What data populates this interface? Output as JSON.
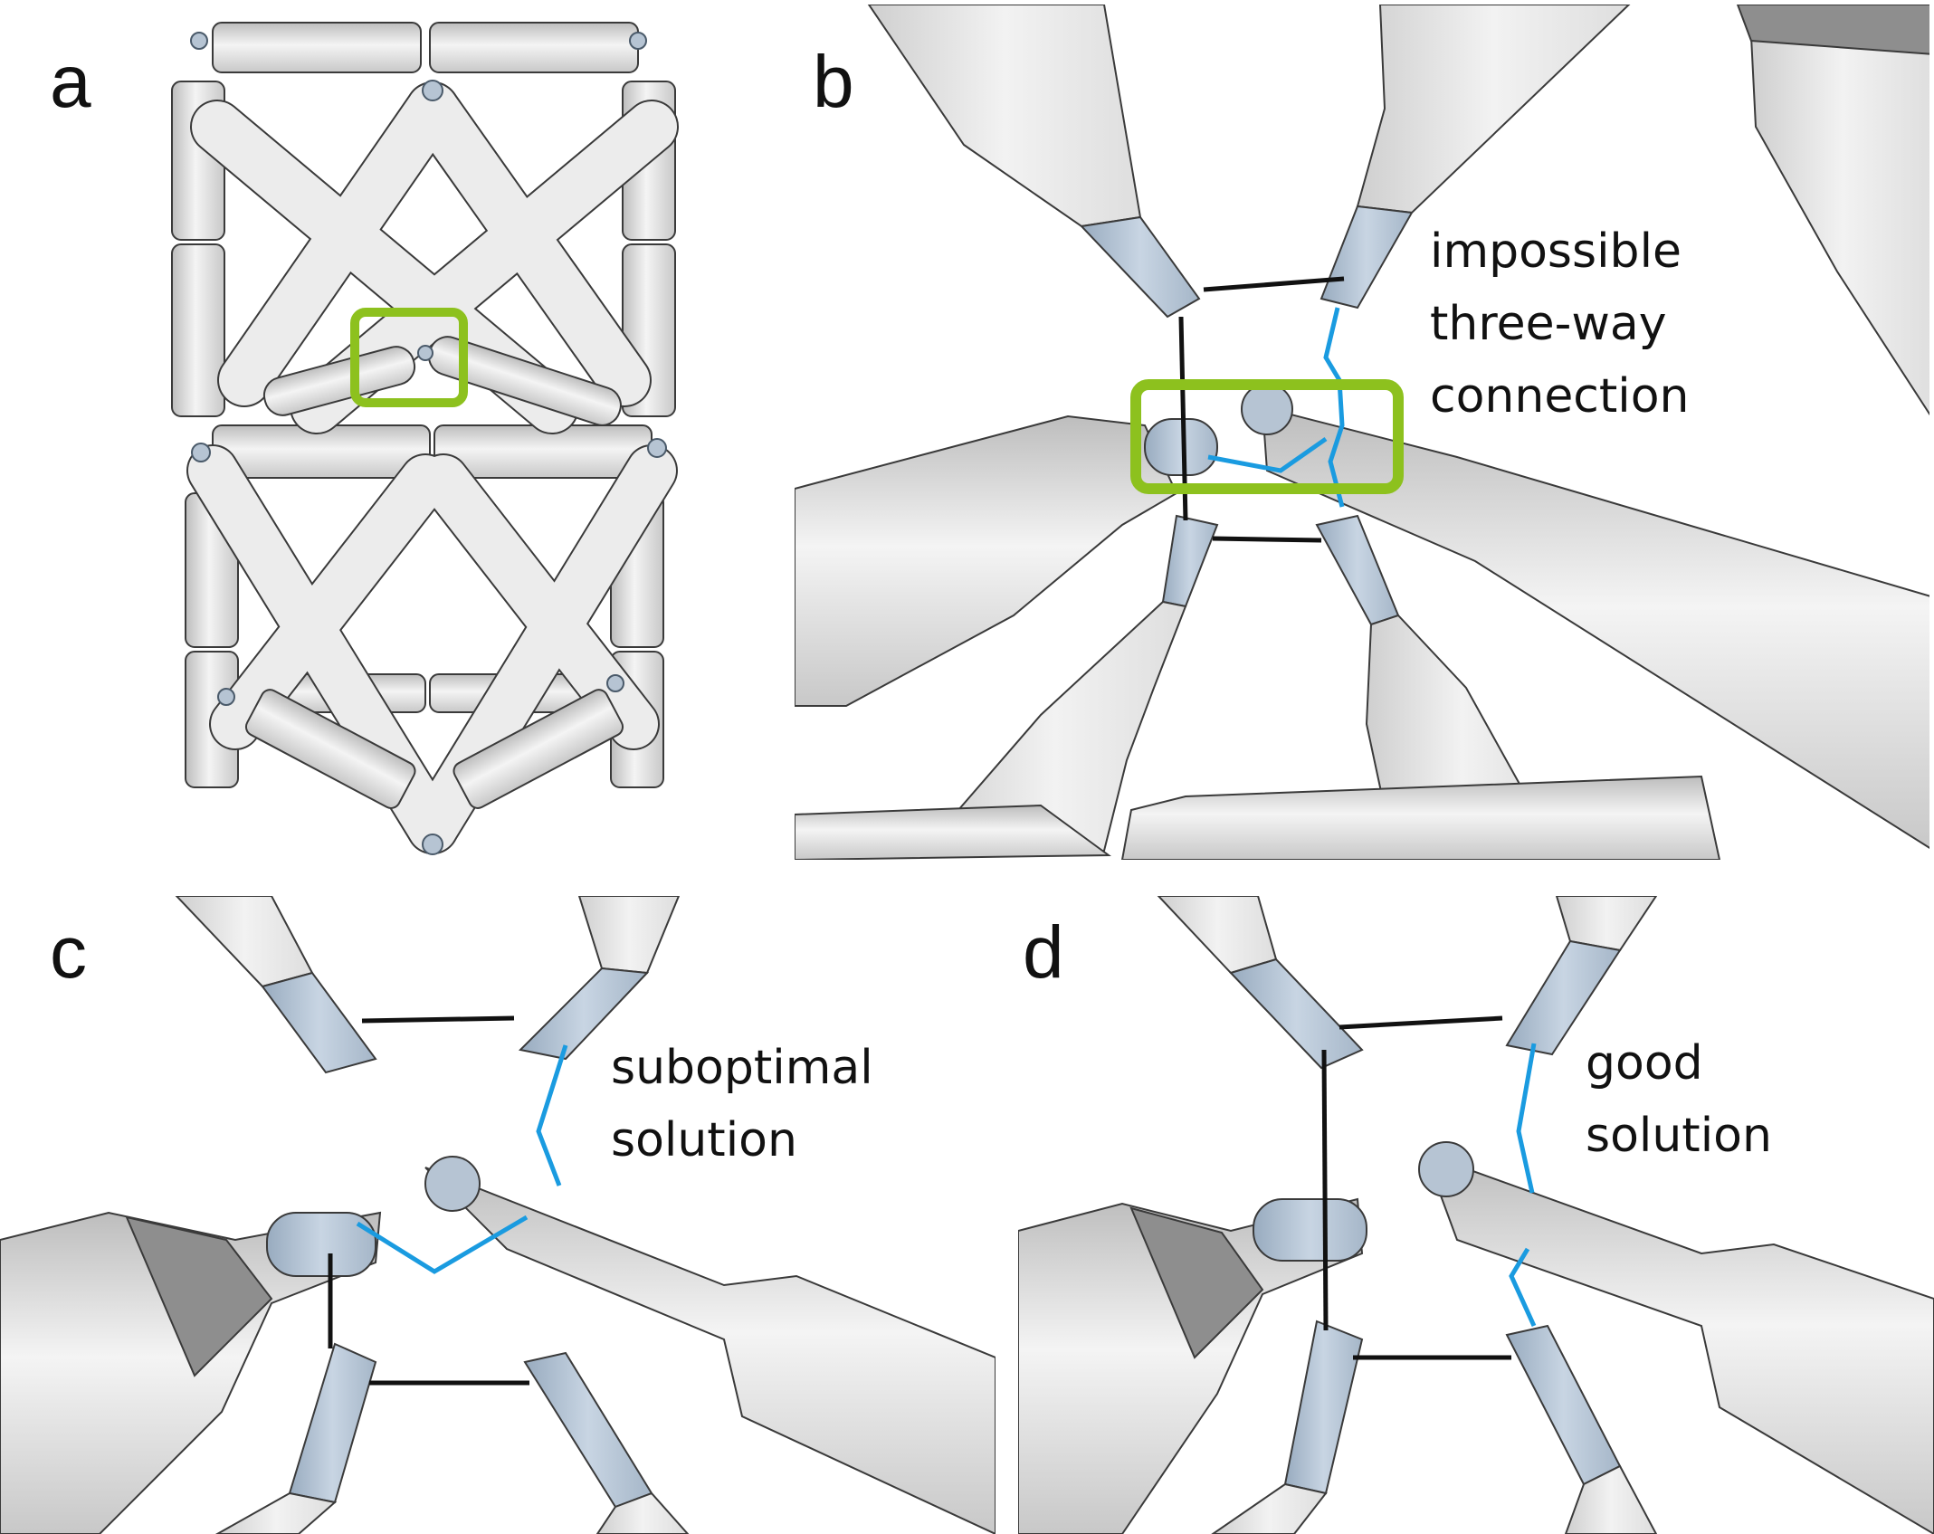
{
  "panels": [
    {
      "letter": "a"
    },
    {
      "letter": "b",
      "annotation_lines": [
        "impossible",
        "three-way",
        "connection"
      ]
    },
    {
      "letter": "c",
      "annotation_lines": [
        "suboptimal",
        "solution"
      ]
    },
    {
      "letter": "d",
      "annotation_lines": [
        "good",
        "solution"
      ]
    }
  ],
  "colors": {
    "strand_normal": "#111111",
    "strand_crossover": "#1a9be0",
    "highlight_box": "#8dc11e",
    "rod_fill": "#e6e6e6",
    "rod_end": "#b6c4d3"
  }
}
